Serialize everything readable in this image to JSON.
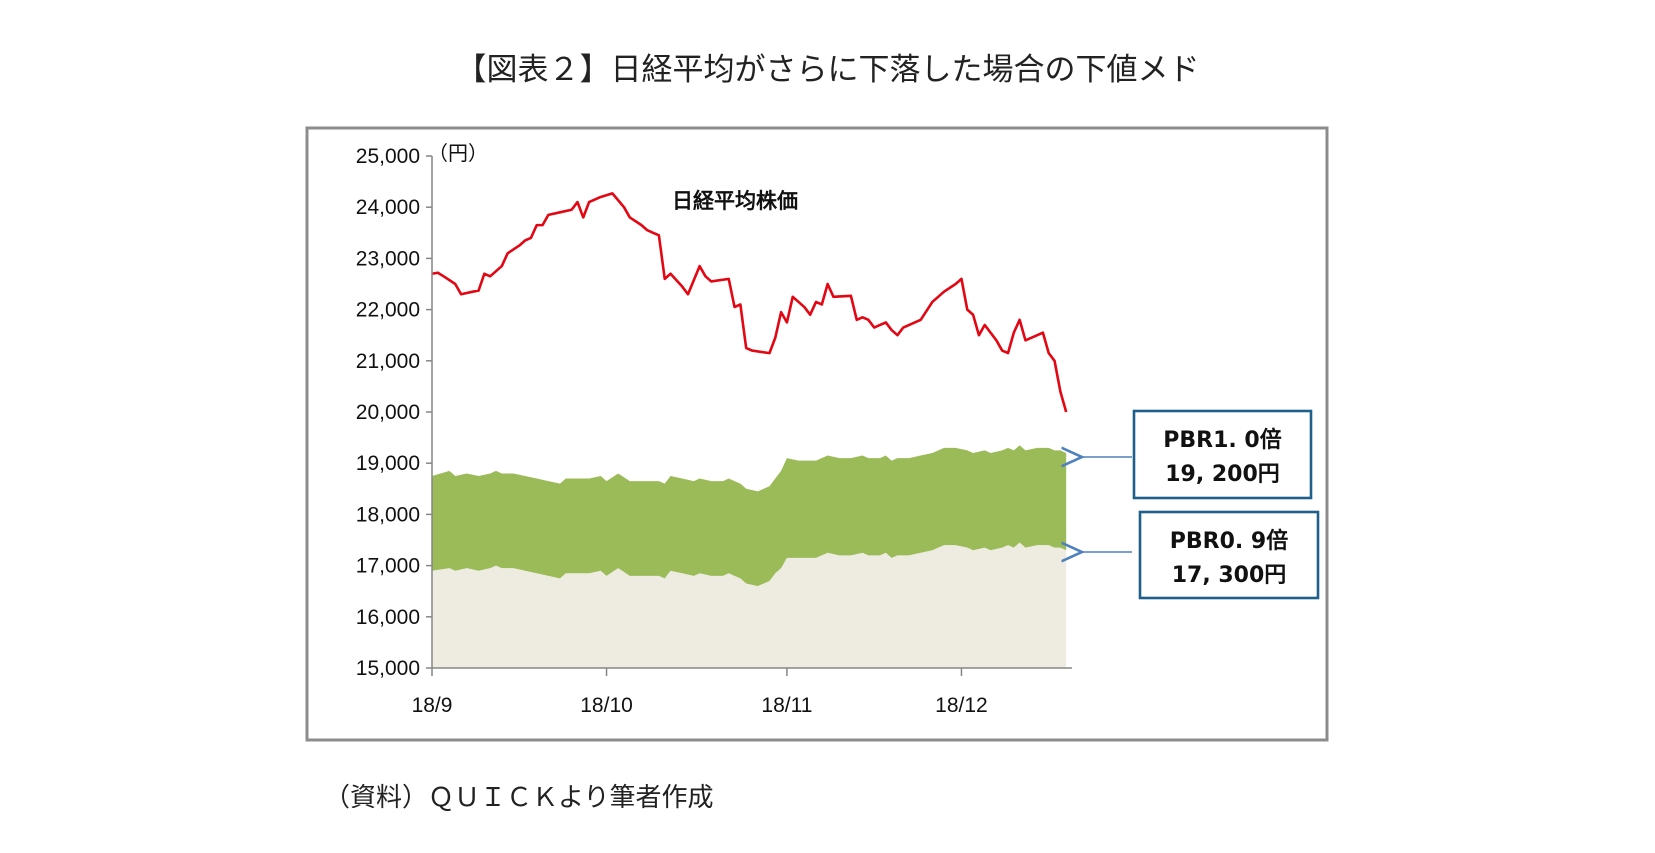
{
  "title": "【図表２】日経平均がさらに下落した場合の下値メド",
  "source": "（資料）ＱＵＩＣＫより筆者作成",
  "chart_data": {
    "type": "area",
    "unit_label": "（円）",
    "series_label": "日経平均株価",
    "ylim": [
      15000,
      25000
    ],
    "yticks": [
      "15,000",
      "16,000",
      "17,000",
      "18,000",
      "19,000",
      "20,000",
      "21,000",
      "22,000",
      "23,000",
      "24,000",
      "25,000"
    ],
    "xlim": [
      0,
      110
    ],
    "xticks": [
      {
        "label": "18/9",
        "x": 0
      },
      {
        "label": "18/10",
        "x": 30
      },
      {
        "label": "18/11",
        "x": 61
      },
      {
        "label": "18/12",
        "x": 91
      }
    ],
    "colors": {
      "line": "#e30613",
      "upper_band": "#9bbb59",
      "lower_band": "#eeece1",
      "box_border": "#1f5f8b",
      "arrow": "#4f81bd"
    },
    "series": [
      {
        "name": "日経平均株価",
        "points": [
          [
            0,
            22700
          ],
          [
            1,
            22720
          ],
          [
            2,
            22650
          ],
          [
            4,
            22500
          ],
          [
            5,
            22300
          ],
          [
            7,
            22350
          ],
          [
            8,
            22370
          ],
          [
            9,
            22700
          ],
          [
            10,
            22650
          ],
          [
            12,
            22850
          ],
          [
            13,
            23100
          ],
          [
            15,
            23250
          ],
          [
            16,
            23350
          ],
          [
            17,
            23400
          ],
          [
            18,
            23650
          ],
          [
            19,
            23650
          ],
          [
            20,
            23850
          ],
          [
            22,
            23900
          ],
          [
            24,
            23950
          ],
          [
            25,
            24100
          ],
          [
            26,
            23800
          ],
          [
            27,
            24100
          ],
          [
            29,
            24200
          ],
          [
            31,
            24270
          ],
          [
            33,
            24000
          ],
          [
            34,
            23800
          ],
          [
            36,
            23650
          ],
          [
            37,
            23550
          ],
          [
            38,
            23500
          ],
          [
            39,
            23450
          ],
          [
            40,
            22600
          ],
          [
            41,
            22700
          ],
          [
            43,
            22450
          ],
          [
            44,
            22300
          ],
          [
            46,
            22850
          ],
          [
            47,
            22650
          ],
          [
            48,
            22550
          ],
          [
            51,
            22600
          ],
          [
            52,
            22050
          ],
          [
            53,
            22100
          ],
          [
            54,
            21250
          ],
          [
            55,
            21200
          ],
          [
            58,
            21150
          ],
          [
            59,
            21450
          ],
          [
            60,
            21950
          ],
          [
            61,
            21750
          ],
          [
            62,
            22250
          ],
          [
            64,
            22050
          ],
          [
            65,
            21900
          ],
          [
            66,
            22150
          ],
          [
            67,
            22100
          ],
          [
            68,
            22500
          ],
          [
            69,
            22250
          ],
          [
            72,
            22270
          ],
          [
            73,
            21800
          ],
          [
            74,
            21850
          ],
          [
            75,
            21800
          ],
          [
            76,
            21650
          ],
          [
            77,
            21700
          ],
          [
            78,
            21750
          ],
          [
            79,
            21600
          ],
          [
            80,
            21500
          ],
          [
            81,
            21650
          ],
          [
            84,
            21800
          ],
          [
            86,
            22150
          ],
          [
            88,
            22350
          ],
          [
            90,
            22500
          ],
          [
            91,
            22600
          ],
          [
            92,
            22000
          ],
          [
            93,
            21900
          ],
          [
            94,
            21500
          ],
          [
            95,
            21700
          ],
          [
            96,
            21550
          ],
          [
            97,
            21400
          ],
          [
            98,
            21200
          ],
          [
            99,
            21150
          ],
          [
            100,
            21550
          ],
          [
            101,
            21800
          ],
          [
            102,
            21400
          ],
          [
            103,
            21450
          ],
          [
            105,
            21550
          ],
          [
            106,
            21150
          ],
          [
            107,
            21000
          ],
          [
            108,
            20400
          ],
          [
            109,
            20000
          ]
        ]
      },
      {
        "name": "PBR1.0倍",
        "points": [
          [
            0,
            18750
          ],
          [
            3,
            18850
          ],
          [
            4,
            18750
          ],
          [
            6,
            18800
          ],
          [
            8,
            18750
          ],
          [
            10,
            18800
          ],
          [
            11,
            18850
          ],
          [
            12,
            18800
          ],
          [
            14,
            18800
          ],
          [
            16,
            18750
          ],
          [
            18,
            18700
          ],
          [
            20,
            18650
          ],
          [
            22,
            18600
          ],
          [
            23,
            18700
          ],
          [
            25,
            18700
          ],
          [
            27,
            18700
          ],
          [
            29,
            18750
          ],
          [
            30,
            18650
          ],
          [
            32,
            18800
          ],
          [
            34,
            18650
          ],
          [
            37,
            18650
          ],
          [
            39,
            18650
          ],
          [
            40,
            18600
          ],
          [
            41,
            18750
          ],
          [
            43,
            18700
          ],
          [
            45,
            18650
          ],
          [
            46,
            18700
          ],
          [
            48,
            18650
          ],
          [
            50,
            18650
          ],
          [
            51,
            18700
          ],
          [
            52,
            18650
          ],
          [
            53,
            18600
          ],
          [
            54,
            18500
          ],
          [
            56,
            18450
          ],
          [
            58,
            18550
          ],
          [
            59,
            18700
          ],
          [
            60,
            18850
          ],
          [
            61,
            19100
          ],
          [
            63,
            19050
          ],
          [
            66,
            19050
          ],
          [
            68,
            19150
          ],
          [
            70,
            19100
          ],
          [
            72,
            19100
          ],
          [
            74,
            19150
          ],
          [
            75,
            19100
          ],
          [
            77,
            19100
          ],
          [
            78,
            19150
          ],
          [
            79,
            19050
          ],
          [
            80,
            19100
          ],
          [
            82,
            19100
          ],
          [
            84,
            19150
          ],
          [
            86,
            19200
          ],
          [
            88,
            19300
          ],
          [
            90,
            19300
          ],
          [
            92,
            19250
          ],
          [
            93,
            19200
          ],
          [
            95,
            19250
          ],
          [
            96,
            19200
          ],
          [
            98,
            19250
          ],
          [
            99,
            19300
          ],
          [
            100,
            19250
          ],
          [
            101,
            19350
          ],
          [
            102,
            19250
          ],
          [
            104,
            19300
          ],
          [
            106,
            19300
          ],
          [
            107,
            19250
          ],
          [
            108,
            19250
          ],
          [
            109,
            19200
          ]
        ]
      },
      {
        "name": "PBR0.9倍",
        "points": [
          [
            0,
            16900
          ],
          [
            3,
            16950
          ],
          [
            4,
            16900
          ],
          [
            6,
            16950
          ],
          [
            8,
            16900
          ],
          [
            10,
            16950
          ],
          [
            11,
            17000
          ],
          [
            12,
            16950
          ],
          [
            14,
            16950
          ],
          [
            16,
            16900
          ],
          [
            18,
            16850
          ],
          [
            20,
            16800
          ],
          [
            22,
            16750
          ],
          [
            23,
            16850
          ],
          [
            25,
            16850
          ],
          [
            27,
            16850
          ],
          [
            29,
            16900
          ],
          [
            30,
            16800
          ],
          [
            32,
            16950
          ],
          [
            34,
            16800
          ],
          [
            37,
            16800
          ],
          [
            39,
            16800
          ],
          [
            40,
            16750
          ],
          [
            41,
            16900
          ],
          [
            43,
            16850
          ],
          [
            45,
            16800
          ],
          [
            46,
            16850
          ],
          [
            48,
            16800
          ],
          [
            50,
            16800
          ],
          [
            51,
            16850
          ],
          [
            52,
            16800
          ],
          [
            53,
            16750
          ],
          [
            54,
            16650
          ],
          [
            56,
            16600
          ],
          [
            58,
            16700
          ],
          [
            59,
            16850
          ],
          [
            60,
            16950
          ],
          [
            61,
            17150
          ],
          [
            63,
            17150
          ],
          [
            66,
            17150
          ],
          [
            68,
            17250
          ],
          [
            70,
            17200
          ],
          [
            72,
            17200
          ],
          [
            74,
            17250
          ],
          [
            75,
            17200
          ],
          [
            77,
            17200
          ],
          [
            78,
            17250
          ],
          [
            79,
            17150
          ],
          [
            80,
            17200
          ],
          [
            82,
            17200
          ],
          [
            84,
            17250
          ],
          [
            86,
            17300
          ],
          [
            88,
            17400
          ],
          [
            90,
            17400
          ],
          [
            92,
            17350
          ],
          [
            93,
            17300
          ],
          [
            95,
            17350
          ],
          [
            96,
            17300
          ],
          [
            98,
            17350
          ],
          [
            99,
            17400
          ],
          [
            100,
            17350
          ],
          [
            101,
            17450
          ],
          [
            102,
            17350
          ],
          [
            104,
            17400
          ],
          [
            106,
            17400
          ],
          [
            107,
            17350
          ],
          [
            108,
            17350
          ],
          [
            109,
            17300
          ]
        ]
      }
    ],
    "callouts": [
      {
        "line1": "PBR1. 0倍",
        "line2": "19, 200円"
      },
      {
        "line1": "PBR0. 9倍",
        "line2": "17, 300円"
      }
    ]
  }
}
